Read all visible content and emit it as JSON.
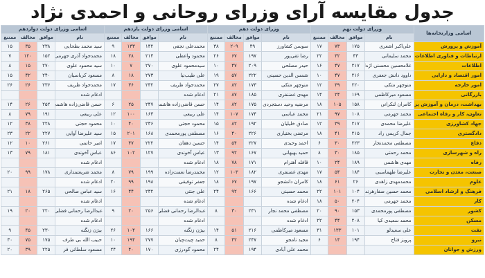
{
  "title": "جدول مقایسه آرای وزرای روحانی و احمدی نژاد",
  "headers": {
    "ministry": "اسامی وزارتخانه‌ها",
    "groups": [
      "وزرای دولت نهم",
      "وزرای دولت دهم",
      "اسامی وزرای دولت یازدهم",
      "اسامی وزرای دولت دوازدهم"
    ],
    "sub": [
      "نام",
      "موافق",
      "مخالف",
      "ممتنع"
    ]
  },
  "rows": [
    {
      "m": "آموزش و پرورش",
      "c": [
        [
          "علی‌اکبر اشعری",
          "۱۷۵",
          "۷۳",
          "۱۷"
        ],
        [
          "سوسن کشاورز",
          "۴۹",
          "۲۰۹",
          "۳۸"
        ],
        [
          "محمدعلی نجفی",
          "۱۴۲",
          "۱۳۳",
          "۹"
        ],
        [
          "سید محمد بطحایی",
          "۲۳۸",
          "۳۵",
          "۱۵"
        ]
      ]
    },
    {
      "m": "ارتباطات و فناوری اطلاعات",
      "c": [
        [
          "محمد سلیمانی",
          "۴۳",
          "۳۲",
          "۲۲"
        ],
        [
          "رضا تقی‌پور",
          "۱۹۷",
          "۶۷",
          "۲۶"
        ],
        [
          "محمود واعظی",
          "۲۱۴",
          "۲۸",
          "۱۸"
        ],
        [
          "محمدجواد آذری جهرمی",
          "۱۵۲",
          "۱۲۰",
          "۷"
        ]
      ]
    },
    {
      "m": "اطلاعات",
      "c": [
        [
          "غلامحسین محسنی اژه‌ای",
          "۲۱۷",
          "۴۷",
          "۱۶"
        ],
        [
          "حیدر مصلحی",
          "۲۰۹",
          "۴۷",
          "۱۰"
        ],
        [
          "سید‌محمود علوی",
          "۲۷۰",
          "۷",
          "۱۰"
        ],
        [
          "سید محمود علوی",
          "۲۷۰",
          "۱۵",
          "۸"
        ]
      ]
    },
    {
      "m": "امور اقتصاد و دارایی",
      "c": [
        [
          "داوود دانش جعفری",
          "۲۱۶",
          "۴۷",
          "۱۰"
        ],
        [
          "شمس الدین حسینی",
          "۲۲۲",
          "۵۷",
          "۱۹"
        ],
        [
          "علی طیب‌نیا",
          "۲۷۳",
          "۱۸",
          "۸"
        ],
        [
          "مسعود کرباسیان",
          "۲۴۰",
          "۴۲",
          "۱۵"
        ]
      ]
    },
    {
      "m": "امور خارجه",
      "c": [
        [
          "منوچهر متکی",
          "۲۲۰",
          "۳۹",
          "۱۲"
        ],
        [
          "منوچهر متکی",
          "۱۷۳",
          "۸۲",
          "۲۷"
        ],
        [
          "محمدجواد ظریف",
          "۲۳۲",
          "۳۶",
          "۱۷"
        ],
        [
          "محمدجواد ظریف",
          "۲۳۶",
          "۲۶",
          "۲۶"
        ]
      ]
    },
    {
      "m": "بازرگانی",
      "c": [
        [
          "مسعود میرکاظمی",
          "۱۶۹",
          "۲۴",
          "۱۴"
        ],
        [
          "مهدی غضنفری",
          "۱۸۵",
          "۸۷",
          "۲۱"
        ],
        [
          "ادغام شده",
          "",
          "",
          ""
        ],
        [
          "ادغام شده",
          "",
          "",
          ""
        ]
      ]
    },
    {
      "m": "بهداشت، درمان و آموزش پزشکی",
      "c": [
        [
          "کامران لنکرانی",
          "۱۵۸",
          "۱۰۵",
          "۱۸"
        ],
        [
          "مرضیه وحید دستجردی",
          "۱۷۵",
          "۸۲",
          "۱۴"
        ],
        [
          "حسن قاضی‌زاده هاشمی",
          "۲۴۷",
          "۲۵",
          "۶"
        ],
        [
          "حسن قاضی‌زاده هاشمی",
          "۲۵۲",
          "۲۶",
          "۱۴"
        ]
      ]
    },
    {
      "m": "تعاون، کار و رفاه اجتماعی",
      "c": [
        [
          "محمد جهرمی",
          "۱۰۸",
          "۹۷",
          "۲۱"
        ],
        [
          "محمد عباسی",
          "۱۷۴",
          "۱۰۷",
          "۱۴"
        ],
        [
          "علی ربیعی",
          "۱۶۳",
          "۱۰۰",
          "۱۲"
        ],
        [
          "علی ربیعی",
          "۱۹۱",
          "۷۹",
          "۸"
        ]
      ]
    },
    {
      "m": "جهاد کشاورزی",
      "c": [
        [
          "علیرضا محمدی",
          "۲۱۷",
          "۳۹",
          "۱۲"
        ],
        [
          "صادق خلیلیان",
          "۱۹۲",
          "۸۲",
          "۱۵"
        ],
        [
          "محمود حجتی",
          "۲۳۶",
          "۴۰",
          "۱۰"
        ],
        [
          "محمود حجتی",
          "۲۲۸",
          "۳۸",
          "۱۲"
        ]
      ]
    },
    {
      "m": "دادگستری",
      "c": [
        [
          "جمال کریمی راد",
          "۲۱۵",
          "۴۱",
          "۱۸"
        ],
        [
          "مرتضی بختیاری",
          "۲۲۶",
          "۴۰",
          "۱۶"
        ],
        [
          "مصطفی پورمحمدی",
          "۱۶۸",
          "۲۰۱",
          "۱۵"
        ],
        [
          "سید علیرضا آوایی",
          "۲۲۷",
          "۲۲",
          "۲۳"
        ]
      ]
    },
    {
      "m": "دفاع",
      "c": [
        [
          "مصطفی محمدنجار",
          "۲۲۳",
          "۳۰",
          "۶"
        ],
        [
          "احمد وحیدی",
          "۲۲۷",
          "۵۴",
          "۱۴"
        ],
        [
          "حسین دهقان",
          "۲۲۲",
          "۴۷",
          "۱۷"
        ],
        [
          "امیر حاتمی",
          "۲۶۱",
          "۱۰",
          "۱۲"
        ]
      ]
    },
    {
      "m": "راه و شهرسازی",
      "c": [
        [
          "محمد رحمتی",
          "۱۸۵",
          "۳۰",
          "۸"
        ],
        [
          "حمید بهبهانی",
          "۱۶۷",
          "۹۲",
          "۱۳"
        ],
        [
          "عباس آخوندی",
          "۱۲۷",
          "۱۰۲",
          "۸۶"
        ],
        [
          "عباس آخوندی",
          "۱۸۱",
          "۷۹",
          "۱۳"
        ]
      ]
    },
    {
      "m": "رفاه",
      "c": [
        [
          "مهدی هاشمی",
          "۱۸۹",
          "۲۴",
          "۱۰"
        ],
        [
          "قافله آهنرام",
          "۱۷۱",
          "۷۸",
          "۱۸"
        ],
        [
          "ادغام شده",
          "",
          "",
          ""
        ],
        [
          "ادغام شده",
          "",
          "",
          ""
        ]
      ]
    },
    {
      "m": "صنعت، معدن و تجارت",
      "c": [
        [
          "علیرضا طهماسبی",
          "۱۸۴",
          "۵۴",
          "۱۷"
        ],
        [
          "مهدی غضنفری",
          "۱۸۲",
          "۱۰۳",
          "۱۲"
        ],
        [
          "محمدرضا نعمت‌زاده",
          "۱۹۹",
          "۷۹",
          "۸"
        ],
        [
          "محمد شریعتمداری",
          "۱۷۸",
          "۹۹",
          "۲۰"
        ]
      ]
    },
    {
      "m": "علوم",
      "c": [
        [
          "محمدمهدی زاهدی",
          "۲۶",
          "۶۱",
          "۱۸"
        ],
        [
          "کامران دانشجو",
          "۱۹۷",
          "۶۷",
          "۱۸"
        ],
        [
          "جعفر توفیقی",
          "۱۹۸",
          "۹۹",
          "۲۰"
        ],
        [
          "ادغام شده",
          "",
          "",
          ""
        ]
      ]
    },
    {
      "m": "فرهنگ و ارشاد اسلامی",
      "c": [
        [
          "محمد حسین صفارهرندی",
          "۱۰۴",
          "۱۰۱",
          "۲۲"
        ],
        [
          "محمد حسینی",
          "۱۶۶",
          "۹۲",
          "۲۴"
        ],
        [
          "علی جنتی",
          "۲۳۲",
          "۴۴",
          "۱۶"
        ],
        [
          "سید عباس صالحی",
          "۲۶۵",
          "۱۸",
          "۲۱"
        ]
      ]
    },
    {
      "m": "کار",
      "c": [
        [
          "محمد جهرمی",
          "۲۰۴",
          "۵۰",
          "۱۸"
        ],
        [
          "ادغام شده",
          "",
          "",
          ""
        ],
        [
          "ادغام شده",
          "",
          "",
          ""
        ],
        [
          "ادغام شده",
          "",
          "",
          ""
        ]
      ]
    },
    {
      "m": "کشور",
      "c": [
        [
          "مصطفی پورمحمدی",
          "۱۵۳",
          "۹۰",
          "۲۰"
        ],
        [
          "مصطفی محمد نجار",
          "۲۳۱",
          "۳۰",
          "۸"
        ],
        [
          "عبدالرضا رحمانی فضلی",
          "۲۵۶",
          "۲۰",
          "۹"
        ],
        [
          "عبدالرضا رحمانی فضلی",
          "۲۲۰",
          "۲۰",
          "۱۹"
        ]
      ]
    },
    {
      "m": "مسکن",
      "c": [
        [
          "محمد سعیدی کیا",
          "۲۰۸",
          "۴۴",
          "۲۲"
        ],
        [
          "ادغام شده",
          "",
          "",
          ""
        ],
        [
          "ادغام شده",
          "",
          "",
          ""
        ],
        [
          "ادغام شده",
          "",
          "",
          ""
        ]
      ]
    },
    {
      "m": "نفت",
      "c": [
        [
          "علی سعیدلو",
          "۱۰۱",
          "۱۳۳",
          "۳۱"
        ],
        [
          "مسعود میرکاظمی",
          "۲۱۶",
          "۵۱",
          "۱۴"
        ],
        [
          "بیژن زنگنه",
          "۱۶۶",
          "۱۰۴",
          "۲۶"
        ],
        [
          "بیژن زنگنه",
          "۲۳۰",
          "۴۵",
          "۹"
        ]
      ]
    },
    {
      "m": "نیرو",
      "c": [
        [
          "پرویز فتاح",
          "۱۹۴",
          "۱۴",
          "۶"
        ],
        [
          "مجید نامجو",
          "۲۴۷",
          "۴۲",
          "۸"
        ],
        [
          "حمید چیت‌چیان",
          "۲۷۷",
          "۱۹۴",
          "۱۰"
        ],
        [
          "حبیب الله بی طرف",
          "۱۷۵",
          "۷۵",
          "۳۰"
        ]
      ]
    },
    {
      "m": "ورزش و جوانان",
      "c": [
        [
          "",
          "",
          "",
          ""
        ],
        [
          "محمد علی آبادی",
          "۱۹۴",
          "",
          "۲۴"
        ],
        [
          "محمود گودرزی",
          "۱۷۰",
          "۴۰",
          "۲۴"
        ],
        [
          "مسعود سلطانی فر",
          "۲۲۵",
          "۳۹",
          "۲۰"
        ]
      ]
    }
  ]
}
